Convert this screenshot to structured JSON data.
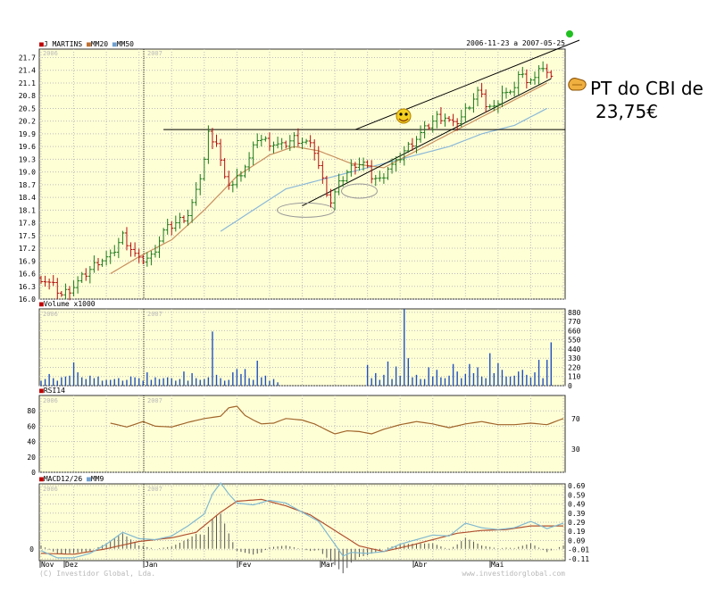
{
  "chart_data": [
    {
      "type": "candlestick",
      "legend": [
        "J MARTINS",
        "MM20",
        "MM50"
      ],
      "date_range": "2006-11-23 a 2007-05-25",
      "ylim": [
        16.0,
        21.9
      ],
      "y_ticks": [
        "21.7",
        "21.4",
        "21.1",
        "20.8",
        "20.5",
        "20.2",
        "19.9",
        "19.6",
        "19.3",
        "19.0",
        "18.7",
        "18.4",
        "18.1",
        "17.8",
        "17.5",
        "17.2",
        "16.9",
        "16.6",
        "16.3",
        "16.0"
      ],
      "year_marks": [
        "2006",
        "2007"
      ],
      "close_anchors": [
        [
          0,
          16.5
        ],
        [
          3,
          16.3
        ],
        [
          5,
          16.1
        ],
        [
          8,
          16.3
        ],
        [
          11,
          16.6
        ],
        [
          14,
          16.9
        ],
        [
          17,
          17.0
        ],
        [
          20,
          17.5
        ],
        [
          22,
          17.2
        ],
        [
          24,
          16.9
        ],
        [
          27,
          17.0
        ],
        [
          30,
          17.6
        ],
        [
          33,
          17.8
        ],
        [
          36,
          18.0
        ],
        [
          38,
          18.5
        ],
        [
          40,
          19.3
        ],
        [
          41,
          19.9
        ],
        [
          43,
          19.7
        ],
        [
          45,
          18.8
        ],
        [
          47,
          18.7
        ],
        [
          49,
          19.0
        ],
        [
          51,
          19.3
        ],
        [
          53,
          19.8
        ],
        [
          56,
          19.7
        ],
        [
          59,
          19.6
        ],
        [
          62,
          19.8
        ],
        [
          65,
          19.7
        ],
        [
          67,
          19.5
        ],
        [
          69,
          18.8
        ],
        [
          71,
          18.3
        ],
        [
          73,
          18.7
        ],
        [
          75,
          19.0
        ],
        [
          77,
          19.2
        ],
        [
          79,
          19.2
        ],
        [
          81,
          18.9
        ],
        [
          83,
          18.8
        ],
        [
          85,
          19.1
        ],
        [
          87,
          19.2
        ],
        [
          89,
          19.5
        ],
        [
          91,
          19.7
        ],
        [
          93,
          19.9
        ],
        [
          95,
          20.1
        ],
        [
          97,
          20.3
        ],
        [
          99,
          20.3
        ],
        [
          101,
          20.1
        ],
        [
          103,
          20.3
        ],
        [
          105,
          20.6
        ],
        [
          107,
          20.9
        ],
        [
          109,
          20.6
        ],
        [
          111,
          20.5
        ],
        [
          113,
          20.9
        ],
        [
          115,
          20.8
        ],
        [
          117,
          21.3
        ],
        [
          119,
          21.2
        ],
        [
          121,
          21.2
        ],
        [
          123,
          21.5
        ],
        [
          125,
          21.2
        ]
      ],
      "mm20_anchors": [
        [
          17,
          16.6
        ],
        [
          24,
          17.0
        ],
        [
          32,
          17.4
        ],
        [
          40,
          18.1
        ],
        [
          48,
          18.9
        ],
        [
          56,
          19.4
        ],
        [
          62,
          19.6
        ],
        [
          68,
          19.5
        ],
        [
          76,
          19.2
        ],
        [
          84,
          19.1
        ],
        [
          92,
          19.5
        ],
        [
          100,
          19.9
        ],
        [
          108,
          20.3
        ],
        [
          116,
          20.7
        ],
        [
          124,
          21.1
        ]
      ],
      "mm50_anchors": [
        [
          44,
          17.6
        ],
        [
          52,
          18.1
        ],
        [
          60,
          18.6
        ],
        [
          68,
          18.8
        ],
        [
          76,
          19.0
        ],
        [
          84,
          19.2
        ],
        [
          92,
          19.4
        ],
        [
          100,
          19.6
        ],
        [
          108,
          19.9
        ],
        [
          116,
          20.1
        ],
        [
          124,
          20.5
        ]
      ],
      "horizontal_line_value": 20.0,
      "channel": {
        "lower": [
          [
            64,
            18.2
          ],
          [
            125,
            21.2
          ]
        ],
        "upper": [
          [
            77,
            20.0
          ],
          [
            128,
            21.9
          ]
        ]
      },
      "annotation": [
        "PT do CBI de",
        "23,75€"
      ]
    },
    {
      "type": "bar",
      "title": "Volume x1000",
      "year_marks": [
        "2006",
        "2007"
      ],
      "ylim": [
        0,
        900
      ],
      "y_ticks": [
        "880",
        "770",
        "660",
        "550",
        "440",
        "330",
        "220",
        "110",
        "0"
      ],
      "values": [
        60,
        80,
        140,
        90,
        60,
        100,
        110,
        120,
        280,
        160,
        100,
        80,
        120,
        90,
        110,
        60,
        70,
        70,
        80,
        90,
        60,
        70,
        110,
        100,
        90,
        60,
        160,
        70,
        100,
        80,
        90,
        100,
        90,
        60,
        80,
        170,
        60,
        150,
        90,
        70,
        80,
        100,
        650,
        130,
        90,
        60,
        70,
        160,
        200,
        140,
        200,
        90,
        70,
        300,
        100,
        120,
        60,
        80,
        40,
        0,
        0,
        0,
        0,
        0,
        0,
        0,
        0,
        0,
        0,
        0,
        0,
        0,
        0,
        0,
        0,
        0,
        0,
        0,
        0,
        0,
        250,
        90,
        150,
        70,
        130,
        290,
        80,
        230,
        120,
        920,
        330,
        100,
        130,
        80,
        80,
        220,
        110,
        190,
        100,
        90,
        120,
        260,
        170,
        90,
        140,
        260,
        150,
        220,
        110,
        90,
        390,
        150,
        270,
        190,
        110,
        110,
        120,
        170,
        190,
        130,
        100,
        160,
        310,
        90,
        310,
        520
      ],
      "year_marks_label": true
    },
    {
      "type": "line",
      "title": "RSI14",
      "year_marks": [
        "2006",
        "2007"
      ],
      "ylim": [
        0,
        100
      ],
      "y_ticks": [
        "80",
        "60",
        "40",
        "20",
        "0"
      ],
      "right_ticks": [
        "70",
        "30"
      ],
      "values_anchors": [
        [
          17,
          64
        ],
        [
          21,
          59
        ],
        [
          25,
          66
        ],
        [
          28,
          60
        ],
        [
          32,
          59
        ],
        [
          36,
          65
        ],
        [
          40,
          70
        ],
        [
          44,
          73
        ],
        [
          46,
          84
        ],
        [
          48,
          86
        ],
        [
          50,
          74
        ],
        [
          52,
          68
        ],
        [
          54,
          63
        ],
        [
          57,
          64
        ],
        [
          60,
          70
        ],
        [
          64,
          68
        ],
        [
          67,
          63
        ],
        [
          70,
          55
        ],
        [
          72,
          50
        ],
        [
          75,
          54
        ],
        [
          78,
          53
        ],
        [
          81,
          50
        ],
        [
          84,
          56
        ],
        [
          88,
          62
        ],
        [
          92,
          66
        ],
        [
          96,
          63
        ],
        [
          100,
          58
        ],
        [
          104,
          63
        ],
        [
          108,
          66
        ],
        [
          112,
          62
        ],
        [
          116,
          62
        ],
        [
          120,
          64
        ],
        [
          124,
          62
        ],
        [
          128,
          70
        ]
      ]
    },
    {
      "type": "line",
      "title": "MACD12/26",
      "series_names": [
        "MACD12/26",
        "MM9"
      ],
      "year_marks": [
        "2006",
        "2007"
      ],
      "ylim": [
        -0.13,
        0.71
      ],
      "y_ticks": [
        "0.69",
        "0.59",
        "0.49",
        "0.39",
        "0.29",
        "0.19",
        "0.09",
        "-0.01",
        "-0.11"
      ],
      "left_tick": "0",
      "macd_anchors": [
        [
          0,
          -0.02
        ],
        [
          4,
          -0.1
        ],
        [
          8,
          -0.1
        ],
        [
          12,
          -0.05
        ],
        [
          16,
          0.05
        ],
        [
          20,
          0.18
        ],
        [
          24,
          0.11
        ],
        [
          28,
          0.1
        ],
        [
          32,
          0.14
        ],
        [
          36,
          0.25
        ],
        [
          40,
          0.38
        ],
        [
          42,
          0.6
        ],
        [
          44,
          0.72
        ],
        [
          46,
          0.6
        ],
        [
          48,
          0.5
        ],
        [
          52,
          0.48
        ],
        [
          56,
          0.53
        ],
        [
          60,
          0.5
        ],
        [
          64,
          0.4
        ],
        [
          68,
          0.3
        ],
        [
          72,
          0.05
        ],
        [
          74,
          -0.08
        ],
        [
          76,
          -0.04
        ],
        [
          80,
          -0.05
        ],
        [
          84,
          -0.03
        ],
        [
          88,
          0.05
        ],
        [
          92,
          0.1
        ],
        [
          96,
          0.15
        ],
        [
          100,
          0.14
        ],
        [
          104,
          0.28
        ],
        [
          108,
          0.23
        ],
        [
          112,
          0.21
        ],
        [
          116,
          0.23
        ],
        [
          120,
          0.3
        ],
        [
          124,
          0.22
        ],
        [
          128,
          0.28
        ]
      ],
      "signal_anchors": [
        [
          0,
          -0.05
        ],
        [
          8,
          -0.06
        ],
        [
          16,
          0.0
        ],
        [
          24,
          0.08
        ],
        [
          32,
          0.12
        ],
        [
          38,
          0.18
        ],
        [
          44,
          0.4
        ],
        [
          48,
          0.52
        ],
        [
          54,
          0.54
        ],
        [
          60,
          0.47
        ],
        [
          66,
          0.37
        ],
        [
          72,
          0.2
        ],
        [
          78,
          0.03
        ],
        [
          84,
          -0.03
        ],
        [
          90,
          0.03
        ],
        [
          96,
          0.1
        ],
        [
          102,
          0.17
        ],
        [
          108,
          0.2
        ],
        [
          114,
          0.21
        ],
        [
          120,
          0.25
        ],
        [
          128,
          0.25
        ]
      ],
      "x_labels": [
        "Nov",
        "Dez",
        "Jan",
        "Fev",
        "Mar",
        "Abr",
        "Mai"
      ]
    }
  ],
  "footer": {
    "left": "(C) Investidor Global, Lda.",
    "right": "www.investidorglobal.com"
  }
}
